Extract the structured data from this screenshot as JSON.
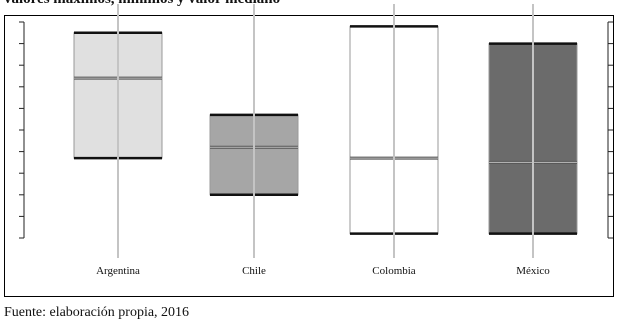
{
  "page": {
    "title": "valores máximos, mínimos y valor mediano",
    "source": "Fuente: elaboración propia, 2016"
  },
  "chart_data": {
    "type": "boxplot",
    "title": "valores máximos, mínimos y valor mediano",
    "xlabel": "",
    "ylabel": "",
    "ylim": [
      0,
      100
    ],
    "grid": false,
    "categories": [
      "Argentina",
      "Chile",
      "Colombia",
      "México"
    ],
    "boxes": [
      {
        "category": "Argentina",
        "low": 37,
        "median": 74,
        "high": 95,
        "color": "#e0e0e0"
      },
      {
        "category": "Chile",
        "low": 20,
        "median": 42,
        "high": 57,
        "color": "#a6a6a6"
      },
      {
        "category": "Colombia",
        "low": 2,
        "median": 37,
        "high": 98,
        "color": "#ffffff"
      },
      {
        "category": "México",
        "low": 2,
        "median": 35,
        "high": 90,
        "color": "#6b6b6b"
      }
    ]
  }
}
